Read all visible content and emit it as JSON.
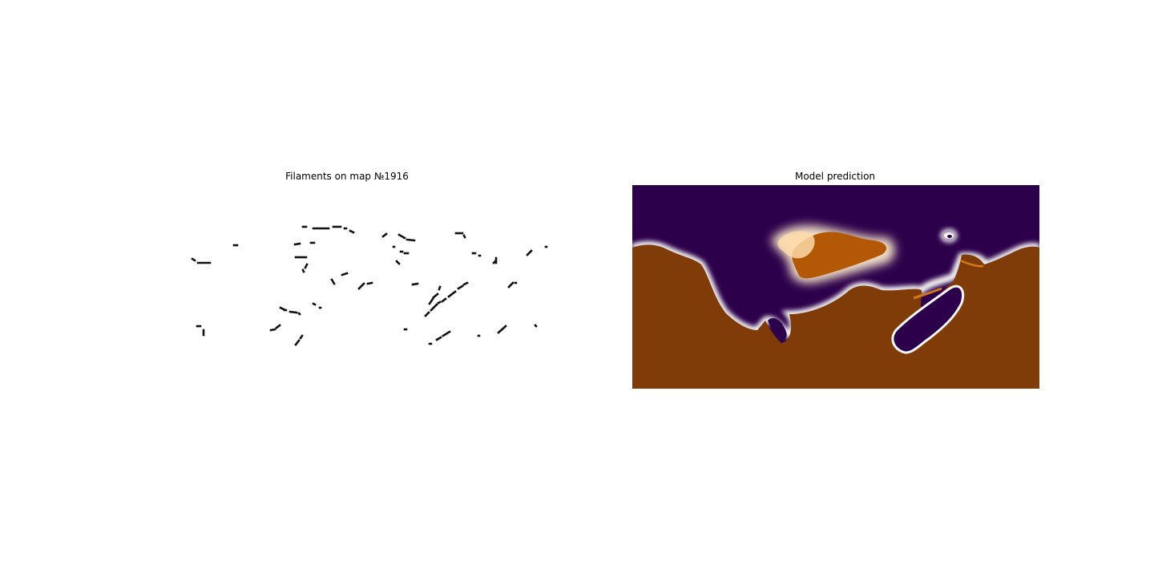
{
  "chart_data": [
    {
      "type": "heatmap",
      "title": "Filaments on map №1916",
      "colors": {
        "filament": "#111111",
        "background": "#ffffff"
      },
      "axes": "off"
    },
    {
      "type": "heatmap",
      "title": "Model prediction",
      "colormap": "PuOr",
      "colors": {
        "low": "#2d004b",
        "high": "#7f3b08",
        "mid": "#f7f7f7"
      },
      "axes": "off"
    }
  ]
}
